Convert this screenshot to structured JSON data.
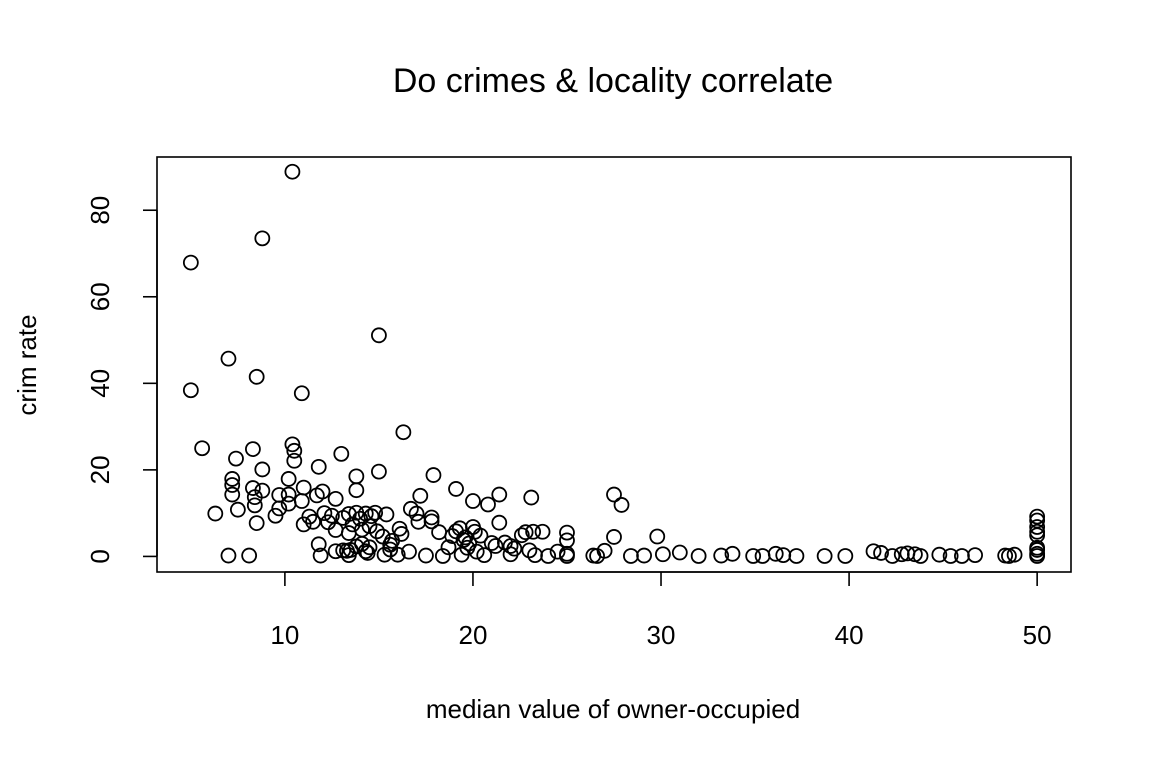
{
  "chart_data": {
    "type": "scatter",
    "title": "Do crimes & locality correlate",
    "xlabel": "median value of owner-occupied",
    "ylabel": "crim rate",
    "xlim": [
      3.2,
      51.8
    ],
    "ylim": [
      -3.6,
      92.3
    ],
    "xticks": [
      "10",
      "20",
      "30",
      "40",
      "50"
    ],
    "yticks": [
      "0",
      "20",
      "40",
      "60",
      "80"
    ],
    "grid": false,
    "legend": "none",
    "points": [
      [
        5.0,
        67.9
      ],
      [
        5.0,
        38.4
      ],
      [
        5.6,
        25.0
      ],
      [
        6.3,
        9.9
      ],
      [
        7.0,
        0.2
      ],
      [
        7.0,
        45.7
      ],
      [
        7.2,
        17.9
      ],
      [
        7.2,
        16.5
      ],
      [
        7.2,
        14.3
      ],
      [
        7.4,
        22.6
      ],
      [
        7.5,
        10.8
      ],
      [
        8.1,
        0.2
      ],
      [
        8.3,
        24.8
      ],
      [
        8.3,
        15.8
      ],
      [
        8.4,
        11.8
      ],
      [
        8.4,
        13.7
      ],
      [
        8.5,
        41.5
      ],
      [
        8.5,
        7.7
      ],
      [
        8.8,
        73.5
      ],
      [
        8.8,
        15.2
      ],
      [
        8.8,
        20.1
      ],
      [
        9.5,
        9.4
      ],
      [
        9.7,
        14.2
      ],
      [
        9.7,
        11.1
      ],
      [
        10.2,
        14.3
      ],
      [
        10.2,
        17.9
      ],
      [
        10.2,
        12.2
      ],
      [
        10.4,
        88.9
      ],
      [
        10.4,
        25.9
      ],
      [
        10.5,
        24.4
      ],
      [
        10.5,
        22.1
      ],
      [
        10.9,
        12.8
      ],
      [
        10.9,
        37.7
      ],
      [
        11.0,
        15.9
      ],
      [
        11.0,
        7.4
      ],
      [
        11.3,
        9.2
      ],
      [
        11.5,
        8.0
      ],
      [
        11.7,
        14.1
      ],
      [
        11.8,
        2.8
      ],
      [
        11.8,
        20.7
      ],
      [
        11.9,
        0.2
      ],
      [
        12.0,
        15.0
      ],
      [
        12.1,
        10.0
      ],
      [
        12.3,
        7.9
      ],
      [
        12.5,
        9.4
      ],
      [
        12.7,
        6.1
      ],
      [
        12.7,
        13.3
      ],
      [
        12.7,
        1.2
      ],
      [
        13.0,
        23.7
      ],
      [
        13.1,
        8.9
      ],
      [
        13.1,
        1.4
      ],
      [
        13.3,
        1.3
      ],
      [
        13.4,
        0.3
      ],
      [
        13.4,
        9.8
      ],
      [
        13.4,
        5.4
      ],
      [
        13.5,
        1.5
      ],
      [
        13.6,
        7.4
      ],
      [
        13.8,
        18.5
      ],
      [
        13.8,
        15.3
      ],
      [
        13.8,
        10.1
      ],
      [
        13.8,
        2.3
      ],
      [
        14.0,
        8.7
      ],
      [
        14.1,
        6.2
      ],
      [
        14.1,
        2.9
      ],
      [
        14.3,
        9.9
      ],
      [
        14.3,
        1.2
      ],
      [
        14.4,
        0.8
      ],
      [
        14.5,
        7.0
      ],
      [
        14.5,
        2.1
      ],
      [
        14.6,
        9.3
      ],
      [
        14.8,
        10.1
      ],
      [
        14.9,
        5.8
      ],
      [
        15.0,
        51.1
      ],
      [
        15.0,
        19.6
      ],
      [
        15.2,
        4.6
      ],
      [
        15.3,
        0.4
      ],
      [
        15.4,
        9.7
      ],
      [
        15.6,
        1.6
      ],
      [
        15.6,
        2.7
      ],
      [
        15.7,
        3.6
      ],
      [
        16.0,
        0.4
      ],
      [
        16.1,
        6.4
      ],
      [
        16.2,
        5.2
      ],
      [
        16.3,
        28.7
      ],
      [
        16.6,
        1.1
      ],
      [
        16.7,
        11.0
      ],
      [
        17.0,
        9.9
      ],
      [
        17.1,
        8.0
      ],
      [
        17.2,
        14.0
      ],
      [
        17.5,
        0.2
      ],
      [
        17.8,
        9.0
      ],
      [
        17.8,
        8.1
      ],
      [
        17.9,
        18.8
      ],
      [
        18.2,
        5.6
      ],
      [
        18.4,
        0.1
      ],
      [
        18.7,
        2.1
      ],
      [
        18.9,
        4.7
      ],
      [
        19.1,
        15.6
      ],
      [
        19.1,
        5.8
      ],
      [
        19.3,
        6.5
      ],
      [
        19.4,
        0.4
      ],
      [
        19.5,
        3.8
      ],
      [
        19.6,
        4.4
      ],
      [
        19.7,
        2.0
      ],
      [
        19.8,
        3.0
      ],
      [
        20.0,
        12.8
      ],
      [
        20.0,
        6.8
      ],
      [
        20.1,
        5.7
      ],
      [
        20.2,
        1.1
      ],
      [
        20.4,
        4.8
      ],
      [
        20.6,
        0.3
      ],
      [
        20.8,
        12.0
      ],
      [
        21.0,
        3.1
      ],
      [
        21.2,
        2.4
      ],
      [
        21.4,
        14.3
      ],
      [
        21.4,
        7.8
      ],
      [
        21.7,
        3.2
      ],
      [
        22.0,
        0.5
      ],
      [
        22.0,
        2.4
      ],
      [
        22.2,
        1.8
      ],
      [
        22.6,
        4.9
      ],
      [
        22.8,
        5.6
      ],
      [
        23.0,
        1.4
      ],
      [
        23.1,
        13.6
      ],
      [
        23.2,
        5.7
      ],
      [
        23.3,
        0.3
      ],
      [
        23.7,
        5.7
      ],
      [
        24.0,
        0.1
      ],
      [
        24.5,
        1.1
      ],
      [
        25.0,
        5.5
      ],
      [
        25.0,
        3.7
      ],
      [
        25.0,
        0.6
      ],
      [
        25.0,
        0.1
      ],
      [
        26.4,
        0.2
      ],
      [
        26.6,
        0.1
      ],
      [
        27.0,
        1.3
      ],
      [
        27.5,
        14.3
      ],
      [
        27.5,
        4.5
      ],
      [
        27.9,
        11.9
      ],
      [
        28.4,
        0.1
      ],
      [
        29.1,
        0.2
      ],
      [
        29.8,
        4.6
      ],
      [
        30.1,
        0.5
      ],
      [
        31.0,
        0.9
      ],
      [
        32.0,
        0.1
      ],
      [
        33.2,
        0.2
      ],
      [
        33.8,
        0.6
      ],
      [
        34.9,
        0.1
      ],
      [
        35.4,
        0.1
      ],
      [
        36.1,
        0.6
      ],
      [
        36.5,
        0.3
      ],
      [
        37.2,
        0.1
      ],
      [
        38.7,
        0.1
      ],
      [
        39.8,
        0.1
      ],
      [
        41.3,
        1.2
      ],
      [
        41.7,
        0.8
      ],
      [
        42.3,
        0.1
      ],
      [
        42.8,
        0.5
      ],
      [
        43.1,
        0.7
      ],
      [
        43.5,
        0.5
      ],
      [
        43.8,
        0.1
      ],
      [
        44.8,
        0.4
      ],
      [
        45.4,
        0.1
      ],
      [
        46.0,
        0.1
      ],
      [
        46.7,
        0.3
      ],
      [
        48.3,
        0.2
      ],
      [
        48.5,
        0.1
      ],
      [
        48.8,
        0.4
      ],
      [
        50.0,
        9.2
      ],
      [
        50.0,
        8.3
      ],
      [
        50.0,
        6.8
      ],
      [
        50.0,
        5.7
      ],
      [
        50.0,
        4.9
      ],
      [
        50.0,
        2.0
      ],
      [
        50.0,
        1.5
      ],
      [
        50.0,
        0.6
      ],
      [
        50.0,
        0.1
      ]
    ]
  }
}
